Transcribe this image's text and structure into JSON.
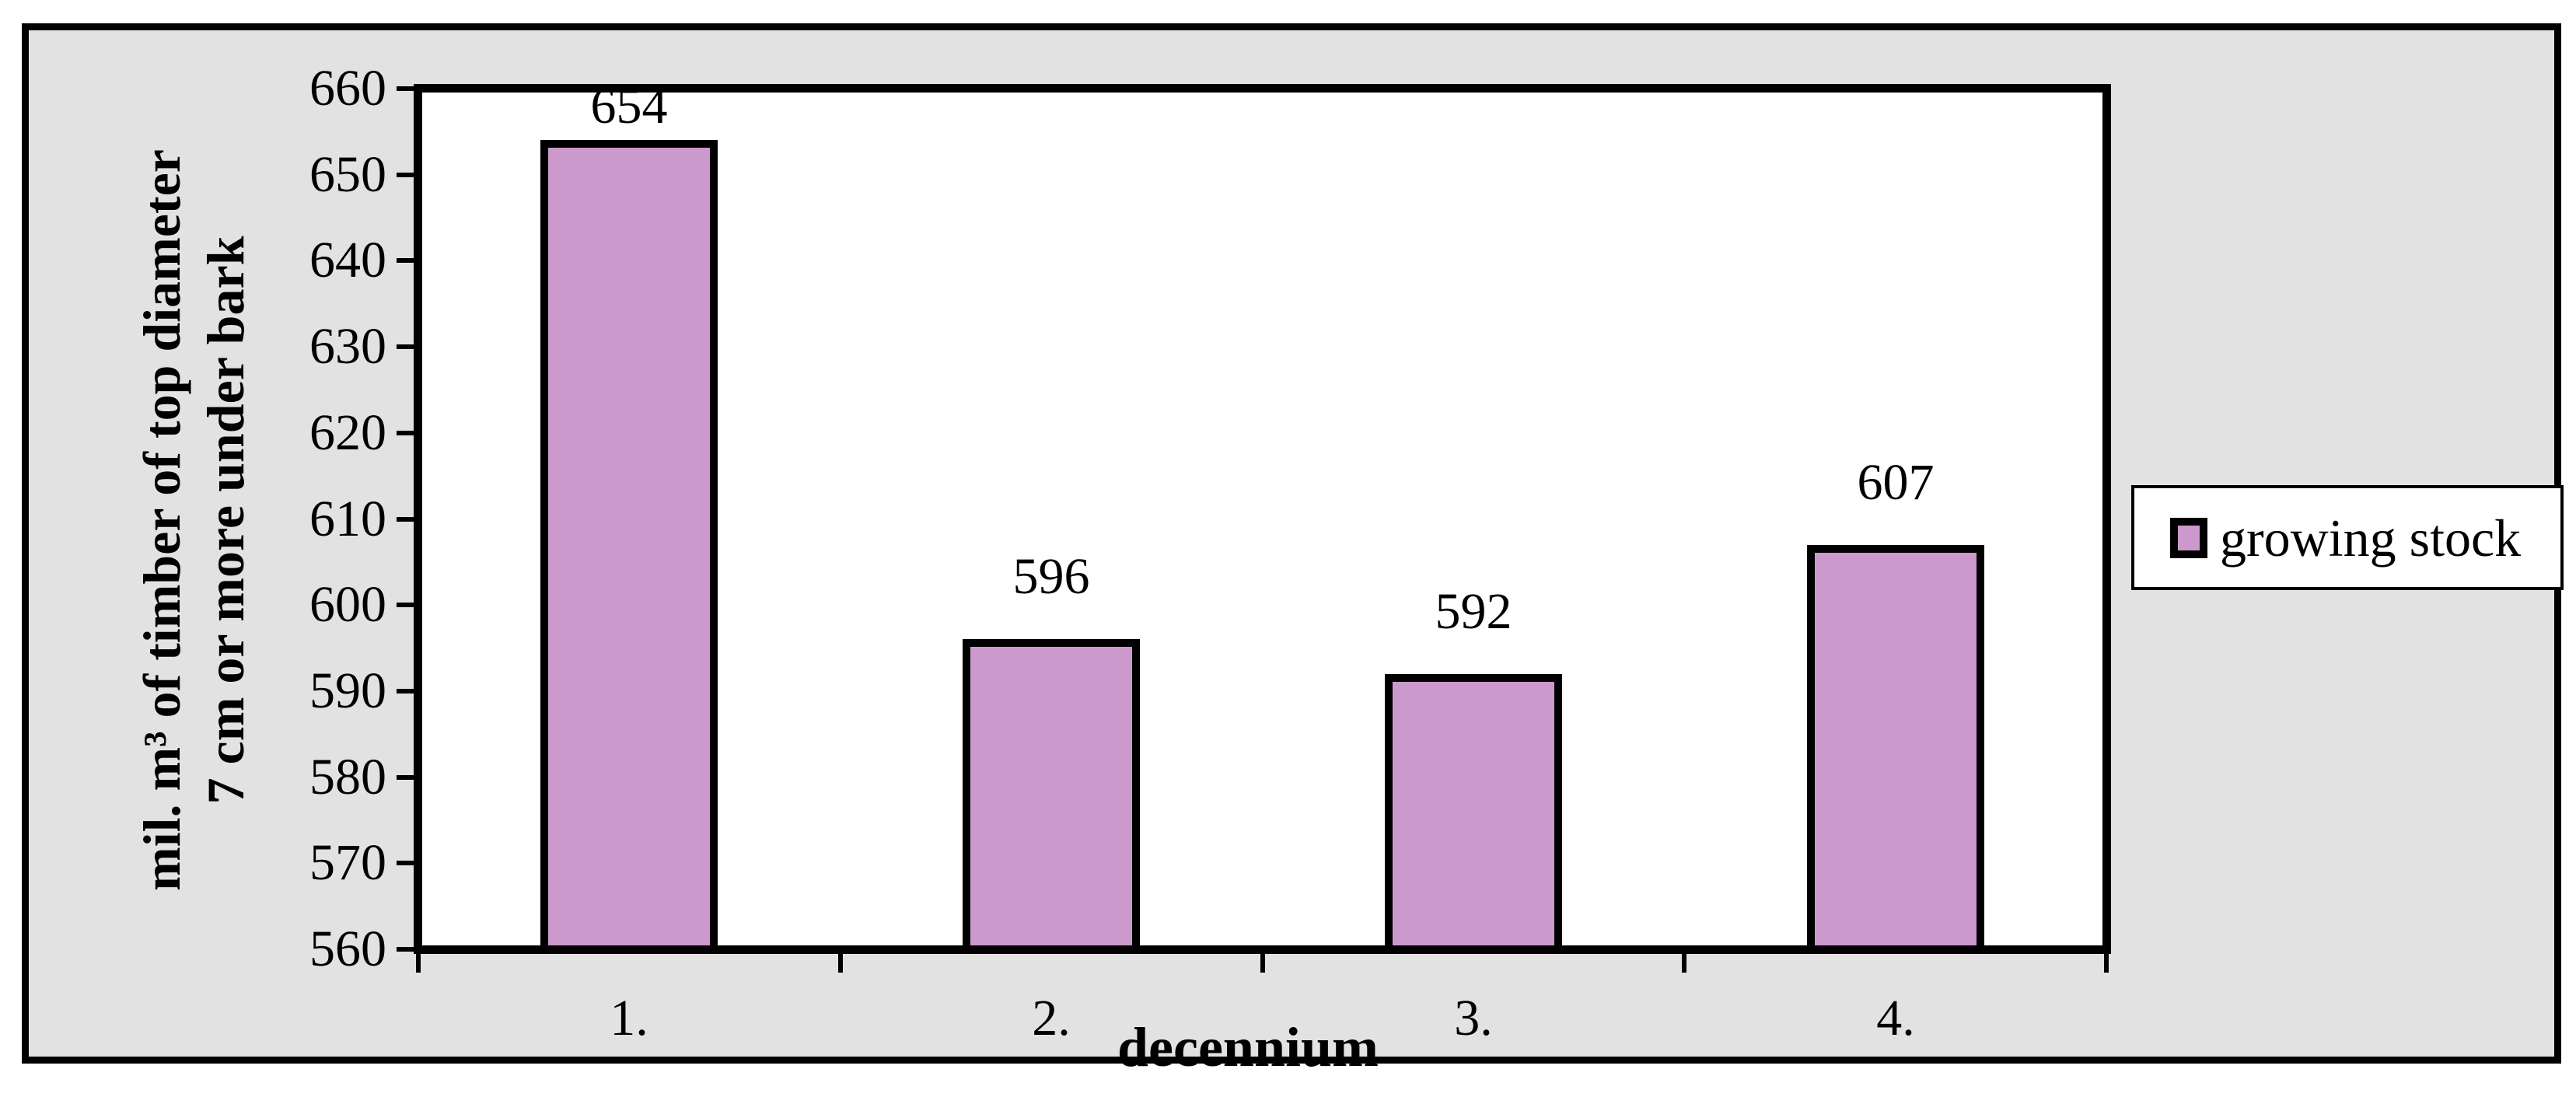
{
  "chart_data": {
    "type": "bar",
    "categories": [
      "1.",
      "2.",
      "3.",
      "4."
    ],
    "values": [
      654,
      596,
      592,
      607
    ],
    "bar_labels": [
      "654",
      "596",
      "592",
      "607"
    ],
    "series": [
      {
        "name": "growing stock",
        "values": [
          654,
          596,
          592,
          607
        ]
      }
    ],
    "title": "",
    "xlabel": "decennium",
    "ylabel_line1": "mil. m³ of timber of top diameter",
    "ylabel_line2": "7 cm or more under bark",
    "ylim": [
      560,
      660
    ],
    "ytick_step": 10,
    "yticks": [
      660,
      650,
      640,
      630,
      620,
      610,
      600,
      590,
      580,
      570,
      560
    ],
    "grid": false,
    "legend_position": "right-middle",
    "legend_entries": [
      "growing stock"
    ]
  },
  "legend": {
    "label": "growing stock"
  },
  "colors": {
    "bar_fill": "#CC99CC",
    "bar_border": "#000000",
    "chart_background": "#E2E2E2",
    "plot_background": "#FFFFFF",
    "text": "#000000"
  }
}
